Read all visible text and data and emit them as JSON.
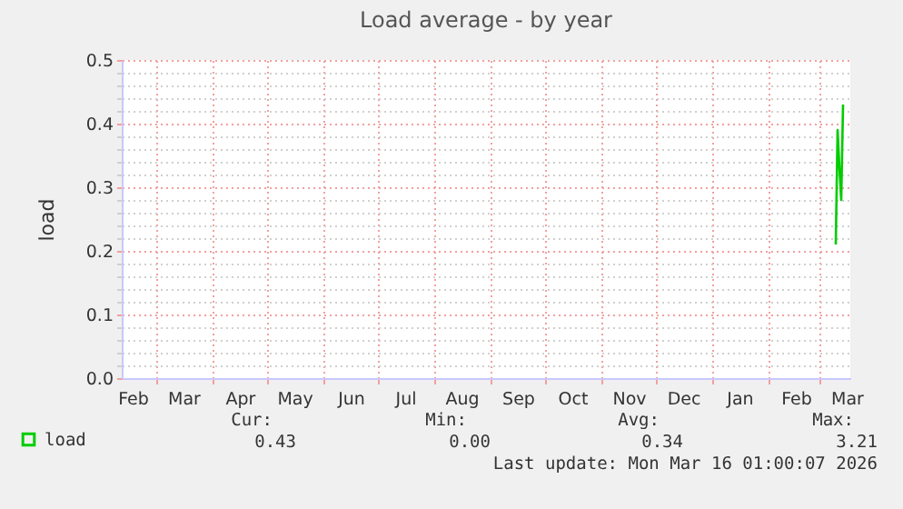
{
  "chart_data": {
    "type": "line",
    "title": "Load average - by year",
    "ylabel": "load",
    "series": [
      {
        "name": "load",
        "color": "#00cc00",
        "x": [
          "2026-03-10",
          "2026-03-11",
          "2026-03-12",
          "2026-03-13",
          "2026-03-14"
        ],
        "values": [
          0.21,
          0.39,
          0.33,
          0.28,
          0.43
        ]
      }
    ],
    "xlim": [
      "2025-02-10",
      "2026-03-18"
    ],
    "xticks": [
      {
        "value": "2025-03-01",
        "label": null
      },
      {
        "value": "2025-04-01",
        "label": null
      },
      {
        "value": "2025-05-01",
        "label": null
      },
      {
        "value": "2025-06-01",
        "label": null
      },
      {
        "value": "2025-07-01",
        "label": null
      },
      {
        "value": "2025-08-01",
        "label": null
      },
      {
        "value": "2025-09-01",
        "label": null
      },
      {
        "value": "2025-10-01",
        "label": null
      },
      {
        "value": "2025-11-01",
        "label": null
      },
      {
        "value": "2025-12-01",
        "label": null
      },
      {
        "value": "2026-01-01",
        "label": null
      },
      {
        "value": "2026-02-01",
        "label": null
      },
      {
        "value": "2026-03-01",
        "label": null
      },
      {
        "value": "2025-02-16",
        "label": "Feb"
      },
      {
        "value": "2025-03-16",
        "label": "Mar"
      },
      {
        "value": "2025-04-16",
        "label": "Apr"
      },
      {
        "value": "2025-05-16",
        "label": "May"
      },
      {
        "value": "2025-06-16",
        "label": "Jun"
      },
      {
        "value": "2025-07-16",
        "label": "Jul"
      },
      {
        "value": "2025-08-16",
        "label": "Aug"
      },
      {
        "value": "2025-09-16",
        "label": "Sep"
      },
      {
        "value": "2025-10-16",
        "label": "Oct"
      },
      {
        "value": "2025-11-16",
        "label": "Nov"
      },
      {
        "value": "2025-12-16",
        "label": "Dec"
      },
      {
        "value": "2026-01-16",
        "label": "Jan"
      },
      {
        "value": "2026-02-16",
        "label": "Feb"
      },
      {
        "value": "2026-03-16",
        "label": "Mar"
      }
    ],
    "ylim": [
      0,
      0.5
    ],
    "yticks": [
      {
        "value": 0,
        "label": "0.0"
      },
      {
        "value": 0.1,
        "label": "0.1"
      },
      {
        "value": 0.2,
        "label": "0.2"
      },
      {
        "value": 0.3,
        "label": "0.3"
      },
      {
        "value": 0.4,
        "label": "0.4"
      },
      {
        "value": 0.5,
        "label": "0.5"
      },
      {
        "value": 0.02,
        "label": null
      },
      {
        "value": 0.04,
        "label": null
      },
      {
        "value": 0.06,
        "label": null
      },
      {
        "value": 0.08,
        "label": null
      },
      {
        "value": 0.12,
        "label": null
      },
      {
        "value": 0.14,
        "label": null
      },
      {
        "value": 0.16,
        "label": null
      },
      {
        "value": 0.18,
        "label": null
      },
      {
        "value": 0.22,
        "label": null
      },
      {
        "value": 0.24,
        "label": null
      },
      {
        "value": 0.26,
        "label": null
      },
      {
        "value": 0.28,
        "label": null
      },
      {
        "value": 0.32,
        "label": null
      },
      {
        "value": 0.34,
        "label": null
      },
      {
        "value": 0.36,
        "label": null
      },
      {
        "value": 0.38,
        "label": null
      },
      {
        "value": 0.42,
        "label": null
      },
      {
        "value": 0.44,
        "label": null
      },
      {
        "value": 0.46,
        "label": null
      },
      {
        "value": 0.48,
        "label": null
      }
    ],
    "grid": true,
    "legend": "bottom",
    "annotations": [
      "Cur:",
      "Min:",
      "Avg:",
      "Max:",
      "0.43",
      "0.00",
      "0.34",
      "3.21",
      "Last update: Mon Mar 16 01:00:07 2026"
    ]
  }
}
